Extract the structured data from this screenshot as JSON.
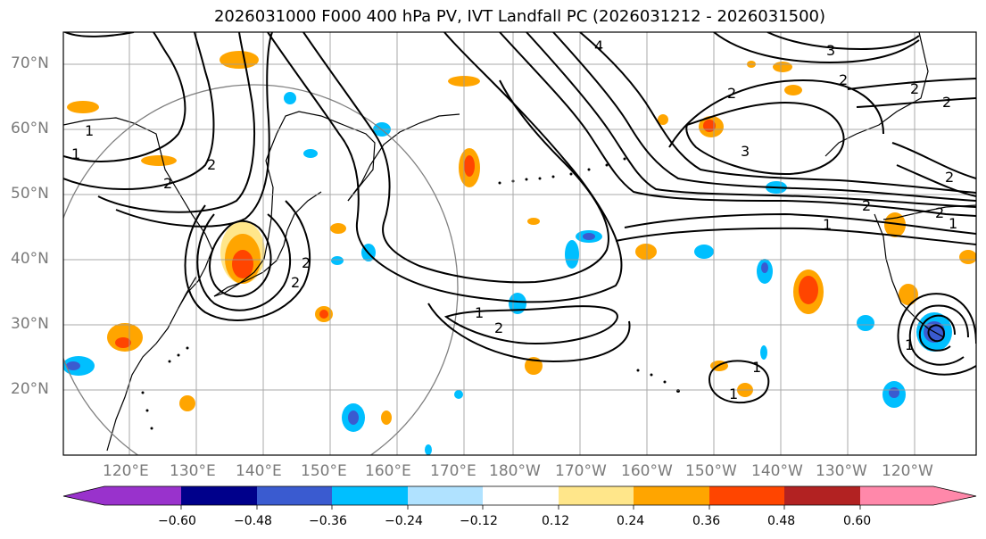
{
  "title": "2026031000 F000 400 hPa PV, IVT Landfall PC (2026031212 - 2026031500)",
  "lat_labels": [
    "70°N",
    "60°N",
    "50°N",
    "40°N",
    "30°N",
    "20°N"
  ],
  "lon_labels": [
    "120°E",
    "130°E",
    "140°E",
    "150°E",
    "160°E",
    "170°E",
    "180°W",
    "170°W",
    "160°W",
    "150°W",
    "140°W",
    "130°W",
    "120°W"
  ],
  "contour_labels": [
    "2",
    "1",
    "2",
    "1",
    "2",
    "2",
    "1",
    "1",
    "2",
    "1",
    "2",
    "2",
    "4",
    "3",
    "2",
    "3",
    "2",
    "2",
    "2",
    "2",
    "1",
    "1",
    "1"
  ],
  "colorbar": {
    "tick_labels": [
      "−0.60",
      "−0.48",
      "−0.36",
      "−0.24",
      "−0.12",
      "0.12",
      "0.24",
      "0.36",
      "0.48",
      "0.60"
    ],
    "colors": [
      "#9932cc",
      "#00008b",
      "#3a5bd0",
      "#00bfff",
      "#b0e2ff",
      "#ffffff",
      "#ffe68a",
      "#ffa500",
      "#ff4500",
      "#b22222",
      "#ff88aa"
    ]
  }
}
